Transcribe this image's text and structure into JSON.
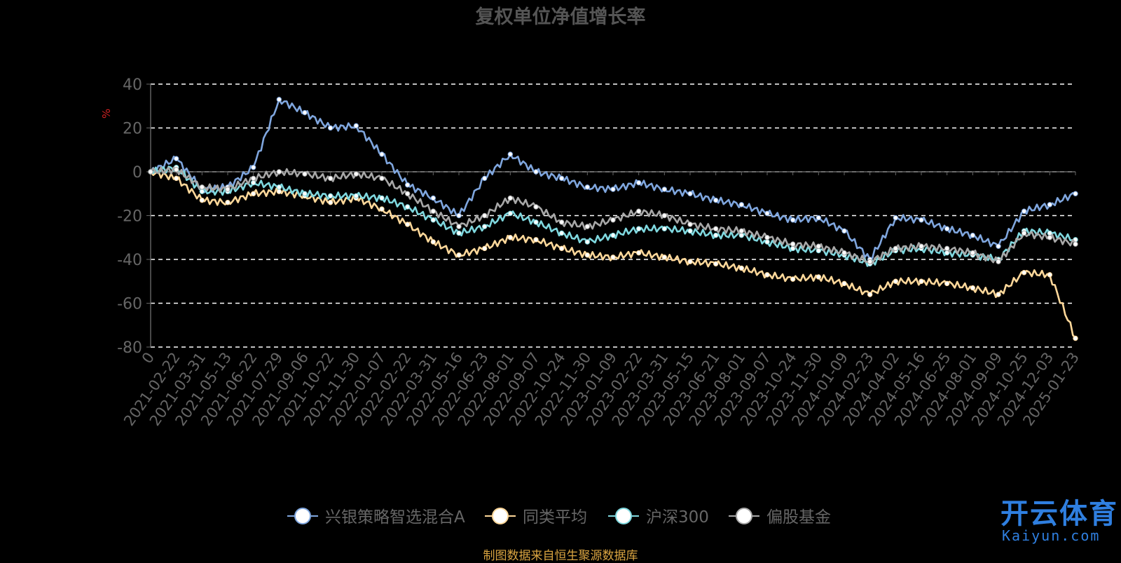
{
  "colors": {
    "background": "#000000",
    "grid": "#ffffff",
    "axis_text": "#666666",
    "title": "#555555",
    "ylabel": "#d22222",
    "source": "#d9a441",
    "logo": "#2f7fe0"
  },
  "source_note": "制图数据来自恒生聚源数据库",
  "logo": {
    "text": "开云体育",
    "sub": "Kaiyun.com"
  },
  "chart_data": {
    "type": "line",
    "title": "复权单位净值增长率",
    "xlabel": "",
    "ylabel": "%",
    "ylim": [
      -80,
      40
    ],
    "yticks": [
      40,
      20,
      0,
      -20,
      -40,
      -60,
      -80
    ],
    "grid": true,
    "legend": "bottom",
    "categories": [
      "0",
      "2021-02-22",
      "2021-03-31",
      "2021-05-13",
      "2021-06-22",
      "2021-07-29",
      "2021-09-06",
      "2021-10-22",
      "2021-11-30",
      "2022-01-07",
      "2022-02-22",
      "2022-03-31",
      "2022-05-16",
      "2022-06-23",
      "2022-08-01",
      "2022-09-07",
      "2022-10-24",
      "2022-11-30",
      "2023-01-09",
      "2023-02-22",
      "2023-03-31",
      "2023-05-15",
      "2023-06-21",
      "2023-08-01",
      "2023-09-07",
      "2023-10-24",
      "2023-11-30",
      "2024-01-09",
      "2024-02-23",
      "2024-04-02",
      "2024-05-16",
      "2024-06-25",
      "2024-08-01",
      "2024-09-09",
      "2024-10-25",
      "2024-12-03",
      "2025-01-23"
    ],
    "series": [
      {
        "name": "兴银策略智选混合A",
        "color": "#7fa6de",
        "values": [
          0,
          6,
          -8,
          -7,
          2,
          33,
          27,
          20,
          21,
          8,
          -6,
          -12,
          -20,
          -3,
          8,
          0,
          -3,
          -7,
          -8,
          -5,
          -8,
          -10,
          -13,
          -15,
          -19,
          -22,
          -21,
          -27,
          -40,
          -21,
          -22,
          -26,
          -29,
          -34,
          -18,
          -15,
          -10
        ]
      },
      {
        "name": "同类平均",
        "color": "#ffd89a",
        "values": [
          0,
          -3,
          -13,
          -14,
          -10,
          -9,
          -11,
          -14,
          -12,
          -17,
          -24,
          -32,
          -38,
          -35,
          -30,
          -31,
          -35,
          -38,
          -39,
          -37,
          -39,
          -41,
          -42,
          -44,
          -47,
          -49,
          -48,
          -51,
          -56,
          -50,
          -50,
          -51,
          -53,
          -56,
          -46,
          -47,
          -76
        ]
      },
      {
        "name": "沪深300",
        "color": "#7fd8df",
        "values": [
          0,
          2,
          -9,
          -9,
          -5,
          -7,
          -10,
          -11,
          -11,
          -12,
          -16,
          -22,
          -28,
          -25,
          -19,
          -23,
          -28,
          -32,
          -29,
          -26,
          -26,
          -27,
          -29,
          -29,
          -32,
          -35,
          -36,
          -38,
          -42,
          -36,
          -35,
          -37,
          -38,
          -40,
          -27,
          -28,
          -31
        ]
      },
      {
        "name": "偏股基金",
        "color": "#a8a8a8",
        "values": [
          0,
          1,
          -7,
          -8,
          -3,
          0,
          -1,
          -3,
          -1,
          -3,
          -10,
          -18,
          -25,
          -20,
          -12,
          -16,
          -23,
          -25,
          -22,
          -18,
          -20,
          -24,
          -26,
          -27,
          -30,
          -33,
          -34,
          -37,
          -41,
          -35,
          -34,
          -35,
          -37,
          -41,
          -28,
          -30,
          -33
        ]
      }
    ]
  }
}
